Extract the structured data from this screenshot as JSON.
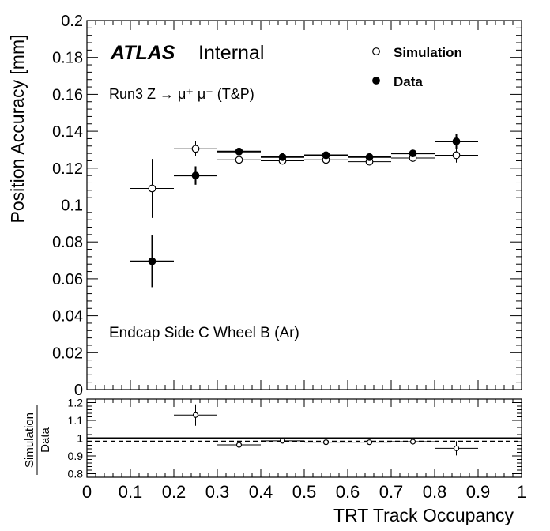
{
  "chart_data": [
    {
      "type": "scatter",
      "panel": "main",
      "ylabel": "Position Accuracy [mm]",
      "xlim": [
        0,
        1
      ],
      "ylim": [
        0,
        0.2
      ],
      "y_ticks": [
        0,
        0.02,
        0.04,
        0.06,
        0.08,
        0.1,
        0.12,
        0.14,
        0.16,
        0.18,
        0.2
      ],
      "y_tick_labels": [
        "0",
        "0.02",
        "0.04",
        "0.06",
        "0.08",
        "0.1",
        "0.12",
        "0.14",
        "0.16",
        "0.18",
        "0.2"
      ],
      "grid": false,
      "legend_placement": "top-right",
      "annotations": {
        "atlas": "ATLAS",
        "internal": "Internal",
        "run_label": "Run3 Z → μ⁺ μ⁻ (T&P)",
        "region_label": "Endcap Side C Wheel B (Ar)"
      },
      "series": [
        {
          "name": "Simulation",
          "marker": "open-circle",
          "x": [
            0.15,
            0.25,
            0.35,
            0.45,
            0.55,
            0.65,
            0.75,
            0.85
          ],
          "y": [
            0.109,
            0.1305,
            0.1245,
            0.124,
            0.1245,
            0.1235,
            0.1255,
            0.127
          ],
          "yerr": [
            0.016,
            0.004,
            0.001,
            0.001,
            0.001,
            0.001,
            0.001,
            0.004
          ],
          "xerr": 0.05
        },
        {
          "name": "Data",
          "marker": "filled-circle",
          "x": [
            0.15,
            0.25,
            0.35,
            0.45,
            0.55,
            0.65,
            0.75,
            0.85
          ],
          "y": [
            0.0695,
            0.116,
            0.129,
            0.126,
            0.127,
            0.126,
            0.128,
            0.1345
          ],
          "yerr": [
            0.014,
            0.005,
            0.002,
            0.001,
            0.001,
            0.001,
            0.001,
            0.004
          ],
          "xerr": 0.05
        }
      ]
    },
    {
      "type": "scatter",
      "panel": "ratio",
      "ylabel_num": "Simulation",
      "ylabel_den": "Data",
      "xlabel": "TRT Track Occupancy",
      "xlim": [
        0,
        1
      ],
      "ylim": [
        0.78,
        1.22
      ],
      "x_ticks": [
        0,
        0.1,
        0.2,
        0.3,
        0.4,
        0.5,
        0.6,
        0.7,
        0.8,
        0.9,
        1
      ],
      "x_tick_labels": [
        "0",
        "0.1",
        "0.2",
        "0.3",
        "0.4",
        "0.5",
        "0.6",
        "0.7",
        "0.8",
        "0.9",
        "1"
      ],
      "y_ticks": [
        0.8,
        0.9,
        1,
        1.1,
        1.2
      ],
      "y_tick_labels": [
        "0.8",
        "0.9",
        "1",
        "1.1",
        "1.2"
      ],
      "reference_lines": [
        {
          "y": 1.0,
          "style": "solid"
        },
        {
          "y": 0.982,
          "style": "dashed"
        }
      ],
      "series": [
        {
          "name": "",
          "marker": "open-circle",
          "x": [
            0.25,
            0.35,
            0.45,
            0.55,
            0.65,
            0.75,
            0.85
          ],
          "y": [
            1.13,
            0.962,
            0.985,
            0.977,
            0.977,
            0.98,
            0.943
          ],
          "yerr": [
            0.06,
            0.02,
            0.01,
            0.01,
            0.01,
            0.01,
            0.04
          ],
          "xerr": 0.05
        }
      ]
    }
  ]
}
